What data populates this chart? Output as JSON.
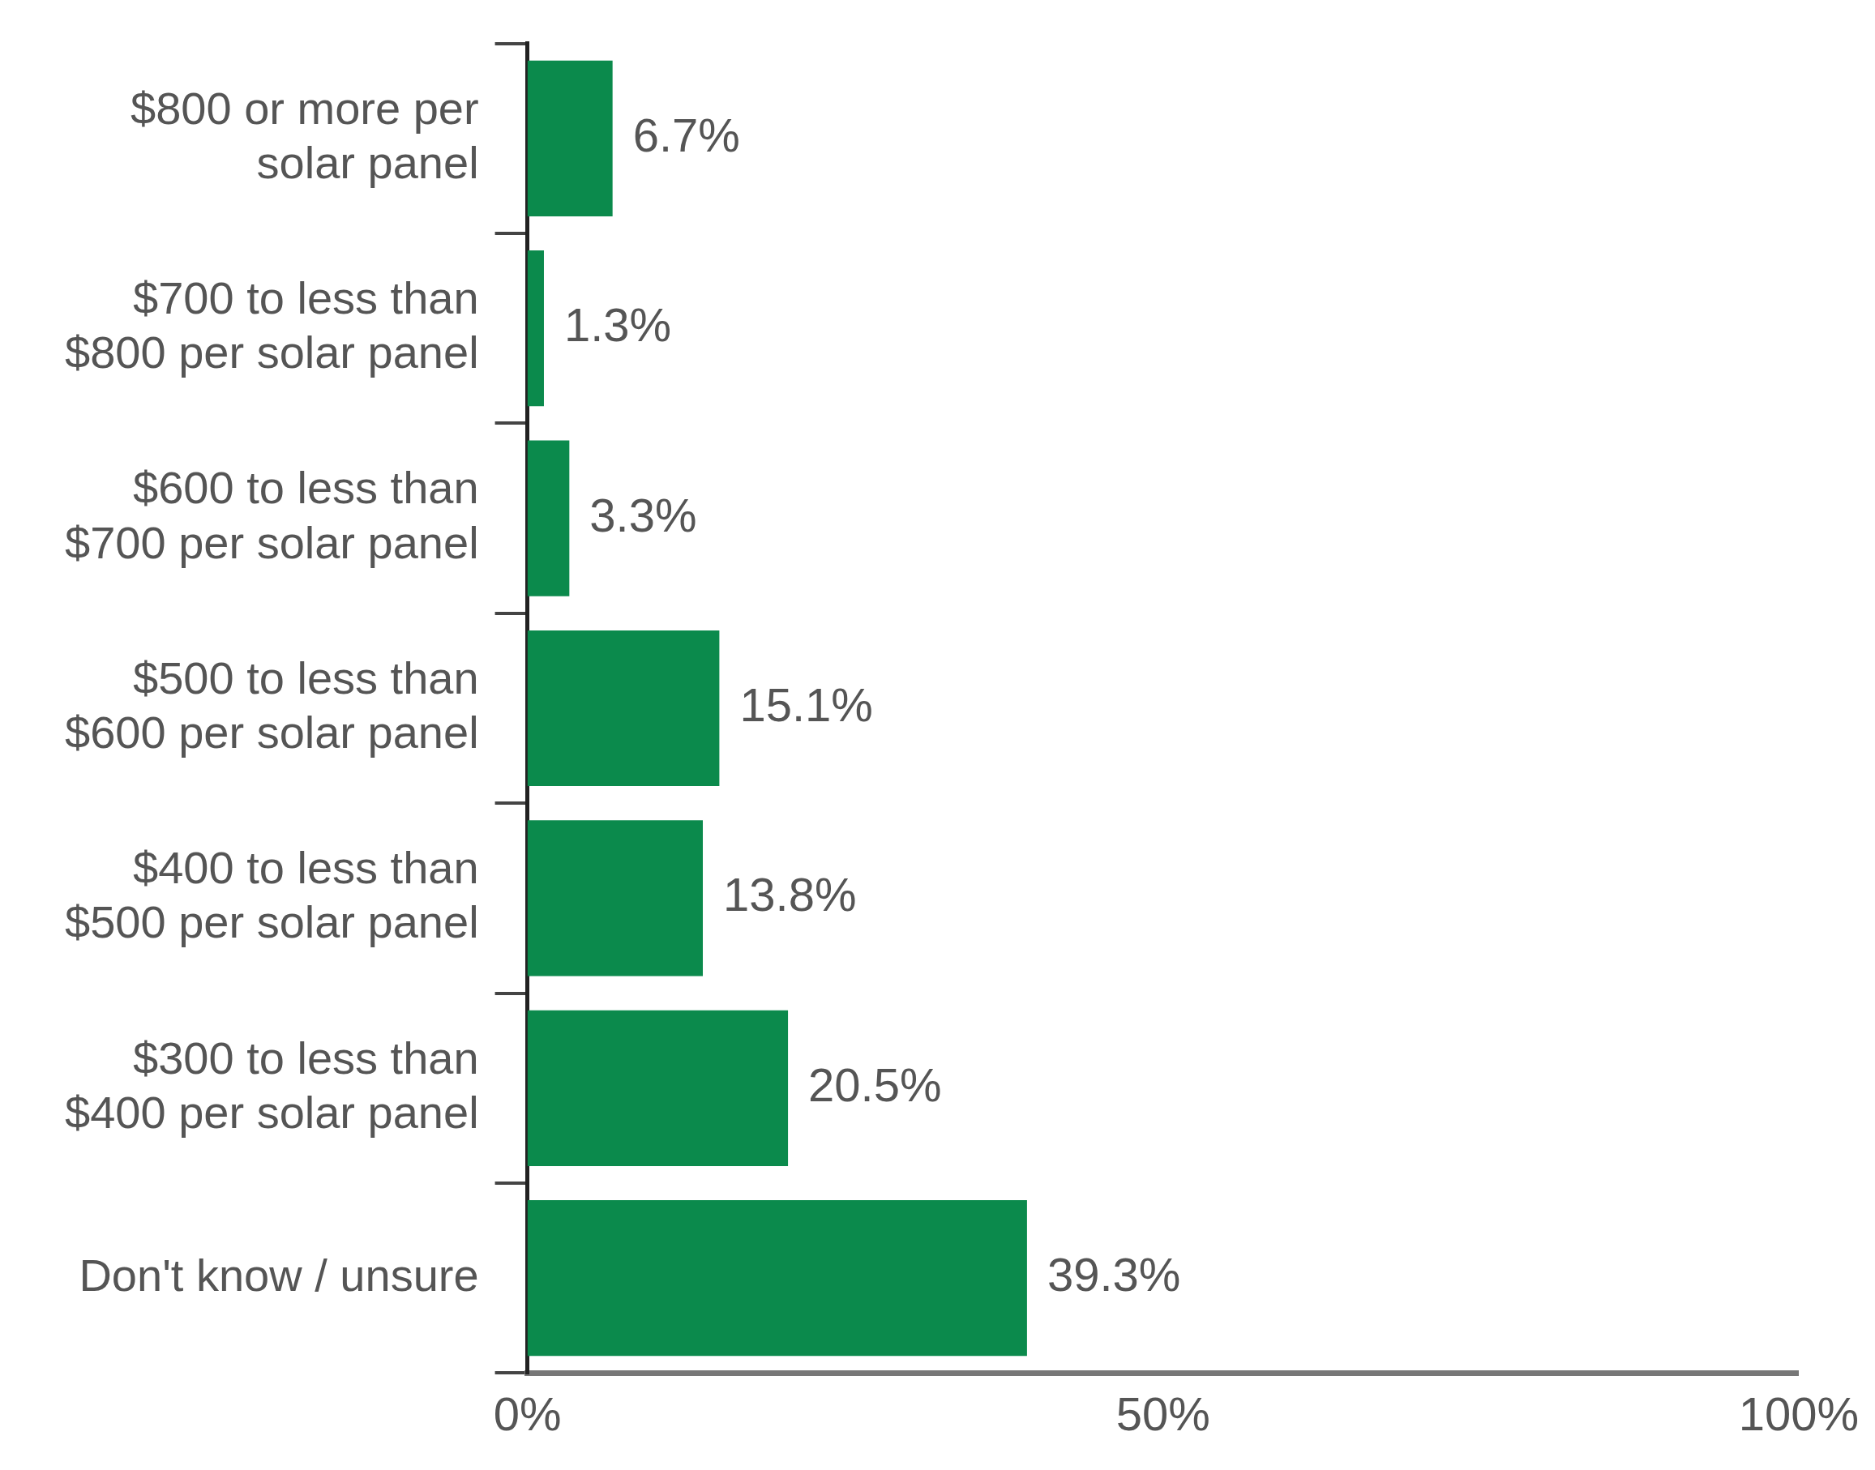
{
  "chart_data": {
    "type": "bar",
    "orientation": "horizontal",
    "categories": [
      "$800 or more per solar panel",
      "$700 to less than $800 per solar panel",
      "$600 to less than $700 per solar panel",
      "$500 to less than $600 per solar panel",
      "$400 to less than $500 per solar panel",
      "$300 to less than $400 per solar panel",
      "Don't know / unsure"
    ],
    "values": [
      6.7,
      1.3,
      3.3,
      15.1,
      13.8,
      20.5,
      39.3
    ],
    "value_labels": [
      "6.7%",
      "1.3%",
      "3.3%",
      "15.1%",
      "13.8%",
      "20.5%",
      "39.3%"
    ],
    "color": "#0b8a4c",
    "xlim": [
      0,
      100
    ],
    "xticks": [
      {
        "value": 0,
        "label": "0%"
      },
      {
        "value": 50,
        "label": "50%"
      },
      {
        "value": 100,
        "label": "100%"
      }
    ],
    "grid": false,
    "legend": false
  }
}
